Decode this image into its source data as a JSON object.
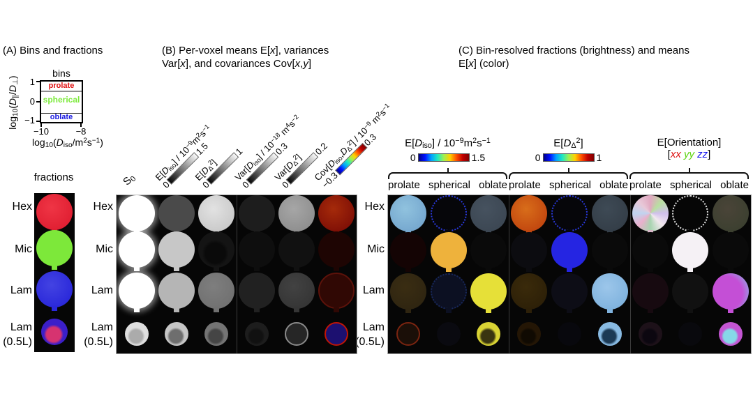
{
  "panelA": {
    "title": "(A) Bins and fractions",
    "fractions_label": "fractions",
    "bins_plot": {
      "title": "bins",
      "ylabel_rich": [
        {
          "t": "log"
        },
        {
          "t": "10",
          "s": "sub"
        },
        {
          "t": "("
        },
        {
          "t": "D",
          "i": 1
        },
        {
          "t": "∥",
          "s": "sub"
        },
        {
          "t": "/"
        },
        {
          "t": "D",
          "i": 1
        },
        {
          "t": "⊥",
          "s": "sub"
        },
        {
          "t": ")"
        }
      ],
      "xlabel_rich": [
        {
          "t": "log"
        },
        {
          "t": "10",
          "s": "sub"
        },
        {
          "t": "("
        },
        {
          "t": "D",
          "i": 1
        },
        {
          "t": "iso",
          "s": "sub"
        },
        {
          "t": "/m"
        },
        {
          "t": "2",
          "s": "sup"
        },
        {
          "t": "s"
        },
        {
          "t": "−1",
          "s": "sup"
        },
        {
          "t": ")"
        }
      ],
      "y_ticks": [
        "1",
        "0",
        "−1"
      ],
      "x_ticks": [
        "−10",
        "−8"
      ],
      "regions": [
        {
          "label": "prolate",
          "color": "#e01010"
        },
        {
          "label": "spherical",
          "color": "#7dea3c"
        },
        {
          "label": "oblate",
          "color": "#1717e0"
        }
      ]
    }
  },
  "rows": [
    [
      "Hex",
      ""
    ],
    [
      "Mic",
      ""
    ],
    [
      "Lam",
      ""
    ],
    [
      "Lam",
      "(0.5L)"
    ]
  ],
  "panelB": {
    "title1_rich": [
      {
        "t": "(B) Per-voxel means E["
      },
      {
        "t": "x",
        "i": 1
      },
      {
        "t": "], variances"
      }
    ],
    "title2_rich": [
      {
        "t": "Var["
      },
      {
        "t": "x",
        "i": 1
      },
      {
        "t": "], and covariances Cov["
      },
      {
        "t": "x",
        "i": 1
      },
      {
        "t": ","
      },
      {
        "t": "y",
        "i": 1
      },
      {
        "t": "]"
      }
    ],
    "s0_rich": [
      {
        "t": "S"
      },
      {
        "t": "0",
        "s": "sub"
      }
    ],
    "colorbars": [
      {
        "name_rich": [
          {
            "t": "E["
          },
          {
            "t": "D",
            "i": 1
          },
          {
            "t": "iso",
            "s": "sub"
          },
          {
            "t": "] / 10"
          },
          {
            "t": "−9",
            "s": "sup"
          },
          {
            "t": "m"
          },
          {
            "t": "2",
            "s": "sup"
          },
          {
            "t": "s"
          },
          {
            "t": "−1",
            "s": "sup"
          }
        ],
        "min": "0",
        "max": "1.5",
        "cmap": "gray"
      },
      {
        "name_rich": [
          {
            "t": "E["
          },
          {
            "t": "D",
            "i": 1
          },
          {
            "t": "Δ",
            "s": "sub"
          },
          {
            "t": "2",
            "s": "sup"
          },
          {
            "t": "]"
          }
        ],
        "min": "0",
        "max": "1",
        "cmap": "gray"
      },
      {
        "name_rich": [
          {
            "t": "Var["
          },
          {
            "t": "D",
            "i": 1
          },
          {
            "t": "iso",
            "s": "sub"
          },
          {
            "t": "] / 10"
          },
          {
            "t": "−18",
            "s": "sup"
          },
          {
            "t": " m"
          },
          {
            "t": "4",
            "s": "sup"
          },
          {
            "t": "s"
          },
          {
            "t": "−2",
            "s": "sup"
          }
        ],
        "min": "0",
        "max": "0.3",
        "cmap": "gray"
      },
      {
        "name_rich": [
          {
            "t": "Var["
          },
          {
            "t": "D",
            "i": 1
          },
          {
            "t": "Δ",
            "s": "sub"
          },
          {
            "t": "2",
            "s": "sup"
          },
          {
            "t": "]"
          }
        ],
        "min": "0",
        "max": "0.2",
        "cmap": "gray"
      },
      {
        "name_rich": [
          {
            "t": "Cov["
          },
          {
            "t": "D",
            "i": 1
          },
          {
            "t": "iso",
            "s": "sub"
          },
          {
            "t": ","
          },
          {
            "t": "D",
            "i": 1
          },
          {
            "t": "Δ",
            "s": "sub"
          },
          {
            "t": "2",
            "s": "sup"
          },
          {
            "t": "] / 10"
          },
          {
            "t": "−9",
            "s": "sup"
          },
          {
            "t": " m"
          },
          {
            "t": "2",
            "s": "sup"
          },
          {
            "t": "s"
          },
          {
            "t": "−1",
            "s": "sup"
          }
        ],
        "min": "−0.3",
        "max": "0.3",
        "cmap": "jet"
      }
    ],
    "grid": {
      "rows": [
        {
          "cells": [
            {
              "c": "#ffffff",
              "fx": "glow"
            },
            {
              "c": "#4a4a4a"
            },
            {
              "c": "#cacaca",
              "fx": "speckle",
              "c2": "#e2e2e2"
            },
            {
              "c": "#1d1d1d"
            },
            {
              "c": "#8f8f8f",
              "fx": "speckle",
              "c2": "#a6a6a6"
            },
            {
              "c": "#801006",
              "fx": "speckle",
              "c2": "#a52a0a"
            }
          ]
        },
        {
          "cells": [
            {
              "c": "#ffffff",
              "fx": "glow"
            },
            {
              "c": "#c7c7c7"
            },
            {
              "c": "#141414",
              "fx": "crescent",
              "c2": "#0a0a0a"
            },
            {
              "c": "#0e0e0e"
            },
            {
              "c": "#111111"
            },
            {
              "c": "#1e0503"
            }
          ]
        },
        {
          "cells": [
            {
              "c": "#ffffff",
              "fx": "glow"
            },
            {
              "c": "#b5b5b5"
            },
            {
              "c": "#717171",
              "fx": "speckle",
              "c2": "#7e7e7e"
            },
            {
              "c": "#212121"
            },
            {
              "c": "#353535",
              "fx": "speckle",
              "c2": "#424242"
            },
            {
              "c": "#300804",
              "fx": "ring",
              "c2": "#5c120a"
            }
          ]
        },
        {
          "cells": [
            {
              "c": "#dedede",
              "fx": "crescent",
              "c2": "#ababab"
            },
            {
              "c": "#c6c6c6",
              "fx": "crescent",
              "c2": "#6e6e6e"
            },
            {
              "c": "#747474",
              "fx": "crescent",
              "c2": "#454545"
            },
            {
              "c": "#1d1d1d",
              "fx": "crescent",
              "c2": "#111111"
            },
            {
              "c": "#262626",
              "fx": "ring",
              "c2": "#8a8a8a"
            },
            {
              "c": "#1c1070",
              "fx": "ring",
              "c2": "#c01505"
            }
          ]
        }
      ]
    }
  },
  "panelC": {
    "title1": "(C) Bin-resolved fractions (brightness) and means",
    "title2_rich": [
      {
        "t": "E["
      },
      {
        "t": "x",
        "i": 1
      },
      {
        "t": "] (color)"
      }
    ],
    "bin_labels": [
      "prolate",
      "spherical",
      "oblate"
    ],
    "colorbars": [
      {
        "name_rich": [
          {
            "t": "E["
          },
          {
            "t": "D",
            "i": 1
          },
          {
            "t": "iso",
            "s": "sub"
          },
          {
            "t": "] / 10"
          },
          {
            "t": "−9",
            "s": "sup"
          },
          {
            "t": "m"
          },
          {
            "t": "2",
            "s": "sup"
          },
          {
            "t": "s"
          },
          {
            "t": "−1",
            "s": "sup"
          }
        ],
        "min": "0",
        "max": "1.5",
        "cmap": "jet"
      },
      {
        "name_rich": [
          {
            "t": "E["
          },
          {
            "t": "D",
            "i": 1
          },
          {
            "t": "Δ",
            "s": "sub"
          },
          {
            "t": "2",
            "s": "sup"
          },
          {
            "t": "]"
          }
        ],
        "min": "0",
        "max": "1",
        "cmap": "jet"
      },
      {
        "name1": "E[Orientation]",
        "name2_rich": [
          {
            "t": "["
          },
          {
            "t": "xx",
            "i": 1,
            "c": "#dd1111"
          },
          {
            "t": " "
          },
          {
            "t": "yy",
            "i": 1,
            "c": "#5fd411"
          },
          {
            "t": " "
          },
          {
            "t": "zz",
            "i": 1,
            "c": "#1111ee"
          },
          {
            "t": "]"
          }
        ]
      }
    ],
    "grid": {
      "rows": [
        {
          "cells": [
            {
              "c": "#76a8cf",
              "fx": "speckle",
              "c2": "#90c2de"
            },
            {
              "c": "#06060a",
              "fx": "dots",
              "c2": "#2a3ae0"
            },
            {
              "c": "#3c4753",
              "fx": "speckle",
              "c2": "#46525f"
            },
            {
              "c": "#c2470f",
              "fx": "speckle",
              "c2": "#d86d1a"
            },
            {
              "c": "#06060a",
              "fx": "dots",
              "c2": "#2a3ae0"
            },
            {
              "c": "#343e48",
              "fx": "speckle",
              "c2": "#3e4a55"
            },
            {
              "c": "#d8b8c8",
              "fx": "mosaic"
            },
            {
              "c": "#060606",
              "fx": "dots",
              "c2": "#e8e8e8"
            },
            {
              "c": "#3c4030",
              "fx": "speckle",
              "c2": "#4a4438"
            }
          ]
        },
        {
          "cells": [
            {
              "c": "#140404"
            },
            {
              "c": "#eeb23c"
            },
            {
              "c": "#0a0a0a"
            },
            {
              "c": "#0c0c10"
            },
            {
              "c": "#2525e2"
            },
            {
              "c": "#0a0a0a"
            },
            {
              "c": "#0a0a0a"
            },
            {
              "c": "#f5f1f5"
            },
            {
              "c": "#0a0a0a"
            }
          ]
        },
        {
          "cells": [
            {
              "c": "#2f2511",
              "fx": "speckle",
              "c2": "#3a2d12"
            },
            {
              "c": "#0c1022",
              "fx": "dots",
              "c2": "#18285c"
            },
            {
              "c": "#e6e038"
            },
            {
              "c": "#2d2008",
              "fx": "speckle",
              "c2": "#3a2a0a"
            },
            {
              "c": "#0d0d16"
            },
            {
              "c": "#80b3de",
              "fx": "speckle",
              "c2": "#9cc6ea"
            },
            {
              "c": "#170a10"
            },
            {
              "c": "#111111"
            },
            {
              "c": "#c44fd6",
              "fx": "duo",
              "c2": "#7ecbe8"
            }
          ]
        },
        {
          "cells": [
            {
              "c": "#1b0f08",
              "fx": "ring",
              "c2": "#7a2410"
            },
            {
              "c": "#0a0a10"
            },
            {
              "c": "#d9d334",
              "fx": "crescent",
              "c2": "#3a3510"
            },
            {
              "c": "#241605",
              "fx": "crescent",
              "c2": "#100a02"
            },
            {
              "c": "#08080d"
            },
            {
              "c": "#88bae2",
              "fx": "crescent",
              "c2": "#1c3a55"
            },
            {
              "c": "#1d1119",
              "fx": "crescent",
              "c2": "#0c0710"
            },
            {
              "c": "#09090d"
            },
            {
              "c": "#c355d2",
              "fx": "crescent",
              "c2": "#86d8e8"
            }
          ]
        }
      ]
    }
  },
  "fractions": {
    "rows": [
      {
        "cells": [
          {
            "c": "#e01f32",
            "fx": "speckle",
            "c2": "#ef3545"
          }
        ]
      },
      {
        "cells": [
          {
            "c": "#7de83a"
          }
        ]
      },
      {
        "cells": [
          {
            "c": "#2a28da",
            "fx": "speckle",
            "c2": "#4343e2"
          }
        ]
      },
      {
        "cells": [
          {
            "c": "#3b1fc9",
            "fx": "crescent",
            "c2": "#d63370"
          }
        ]
      }
    ]
  },
  "colormaps": {
    "gray": [
      "#080808",
      "#f8f8f8"
    ],
    "jet": [
      "#000088",
      "#0010ff",
      "#00a0ff",
      "#20e8c0",
      "#a0f050",
      "#ffd000",
      "#ff5000",
      "#c00000",
      "#800000"
    ]
  },
  "chart_data": [
    {
      "type": "heatmap",
      "title": "(A) bins",
      "xlabel": "log10(Diso/m2s-1)",
      "xlim": [
        -10,
        -8
      ],
      "ylabel": "log10(Dpar/Dperp)",
      "ylim": [
        -1,
        1
      ],
      "regions": [
        {
          "name": "prolate",
          "range_log10_ratio": [
            0.6,
            1
          ]
        },
        {
          "name": "spherical",
          "range_log10_ratio": [
            -0.6,
            0.6
          ]
        },
        {
          "name": "oblate",
          "range_log10_ratio": [
            -1,
            -0.6
          ]
        }
      ]
    },
    {
      "type": "heatmap",
      "title": "(B) per-voxel statistics maps",
      "rows": [
        "Hex",
        "Mic",
        "Lam",
        "Lam (0.5L)"
      ],
      "columns": [
        "S0",
        "E[Diso]/10-9 m2 s-1",
        "E[DΔ2]",
        "Var[Diso]/10-18 m4 s-2",
        "Var[DΔ2]",
        "Cov[Diso,DΔ2]/10-9 m2 s-1"
      ],
      "scales": [
        {
          "column": "E[Diso]",
          "min": 0,
          "max": 1.5,
          "cmap": "gray"
        },
        {
          "column": "E[DΔ2]",
          "min": 0,
          "max": 1,
          "cmap": "gray"
        },
        {
          "column": "Var[Diso]",
          "min": 0,
          "max": 0.3,
          "cmap": "gray"
        },
        {
          "column": "Var[DΔ2]",
          "min": 0,
          "max": 0.2,
          "cmap": "gray"
        },
        {
          "column": "Cov[Diso,DΔ2]",
          "min": -0.3,
          "max": 0.3,
          "cmap": "jet"
        }
      ]
    },
    {
      "type": "heatmap",
      "title": "(C) bin-resolved fractions (brightness) and means E[x] (color)",
      "rows": [
        "Hex",
        "Mic",
        "Lam",
        "Lam (0.5L)"
      ],
      "column_groups": [
        {
          "name": "E[Diso]/10-9 m2 s-1",
          "min": 0,
          "max": 1.5,
          "cmap": "jet",
          "bins": [
            "prolate",
            "spherical",
            "oblate"
          ]
        },
        {
          "name": "E[DΔ2]",
          "min": 0,
          "max": 1,
          "cmap": "jet",
          "bins": [
            "prolate",
            "spherical",
            "oblate"
          ]
        },
        {
          "name": "E[Orientation] [xx yy zz]",
          "encoding": "rgb = xx/yy/zz",
          "bins": [
            "prolate",
            "spherical",
            "oblate"
          ]
        }
      ]
    }
  ]
}
